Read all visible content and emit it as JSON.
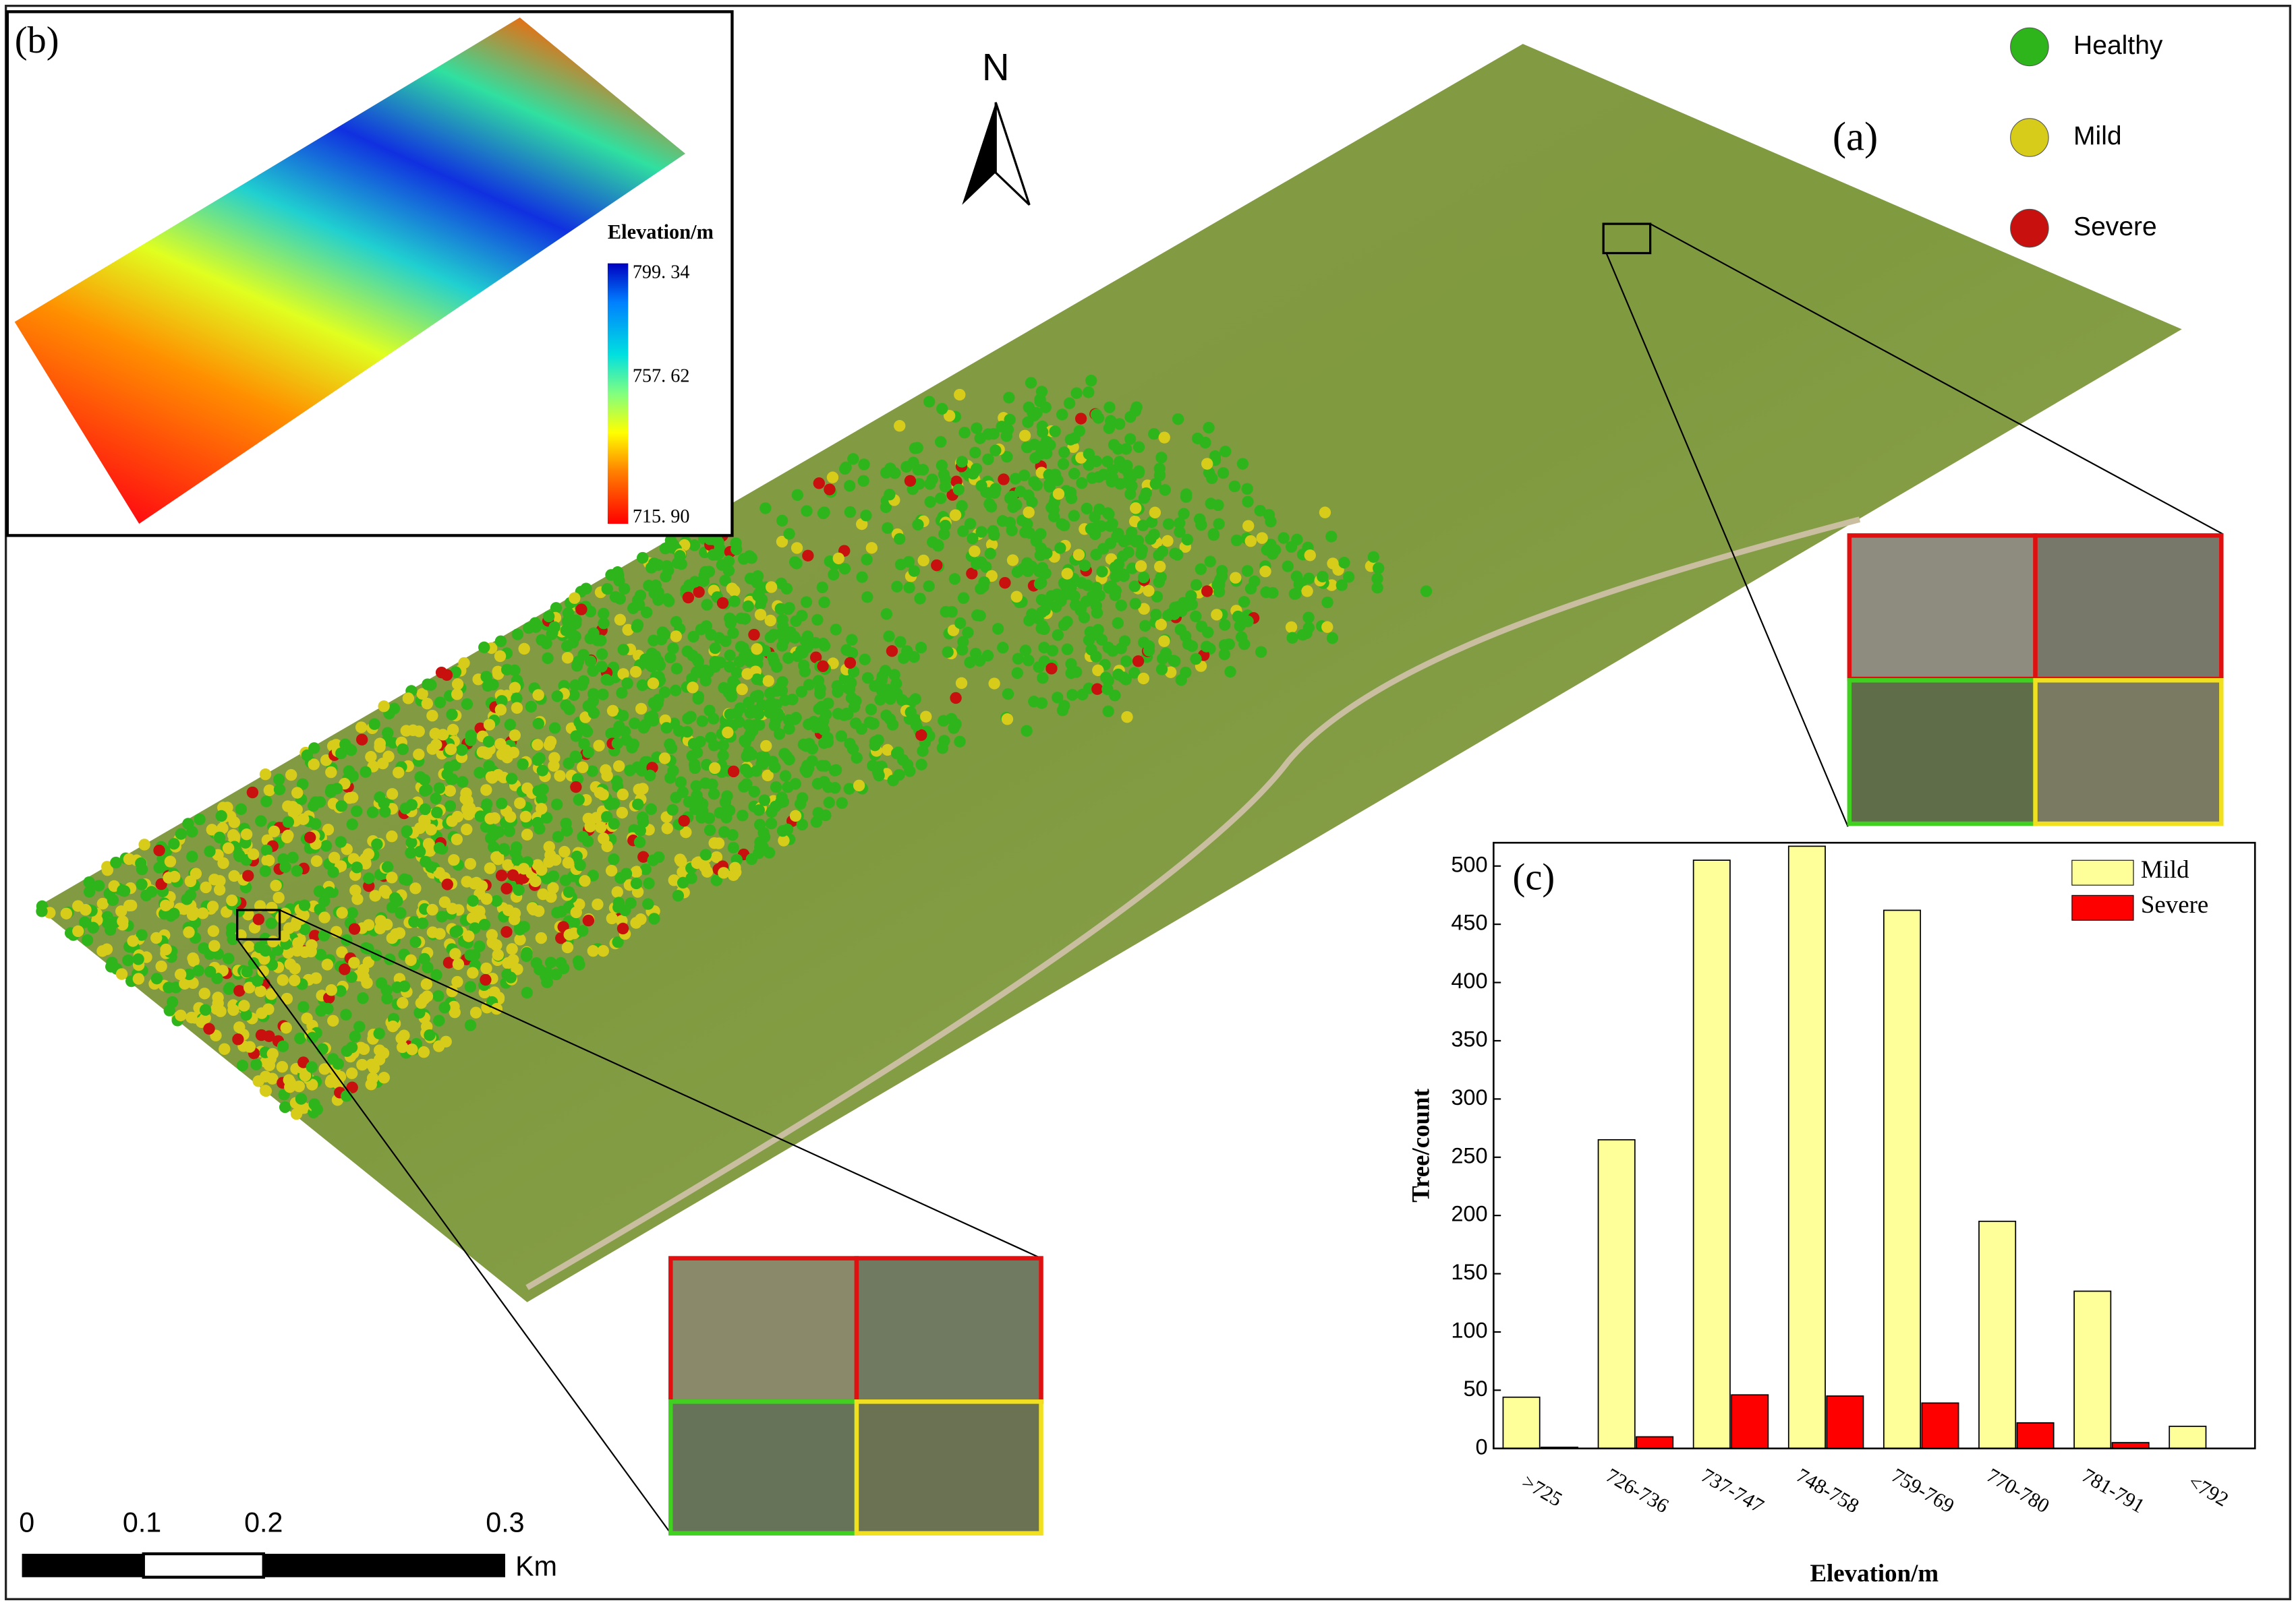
{
  "map": {
    "panel_label": "(a)",
    "north": "N",
    "legend": [
      {
        "name": "Healthy",
        "color": "#2fb51c"
      },
      {
        "name": "Mild",
        "color": "#d8cc1a"
      },
      {
        "name": "Severe",
        "color": "#c8100e"
      }
    ],
    "scale_bar": {
      "ticks": [
        "0",
        "0.1",
        "0.2",
        "0.3"
      ],
      "unit": "Km"
    }
  },
  "elevation_inset": {
    "panel_label": "(b)",
    "title": "Elevation/m",
    "ticks": [
      "799. 34",
      "757. 62",
      "715. 90"
    ]
  },
  "chart_data": {
    "type": "bar",
    "panel_label": "(c)",
    "x_label": "Elevation/m",
    "y_label": "Tree/count",
    "categories": [
      ">725",
      "726-736",
      "737-747",
      "748-758",
      "759-769",
      "770-780",
      "781-791",
      "<792"
    ],
    "series": [
      {
        "name": "Mild",
        "color": "#ffff99",
        "values": [
          44,
          265,
          505,
          517,
          462,
          195,
          135,
          19
        ]
      },
      {
        "name": "Severe",
        "color": "#ff0000",
        "values": [
          1,
          10,
          46,
          45,
          39,
          22,
          5,
          0
        ]
      }
    ],
    "ylim": [
      0,
      520
    ],
    "yticks": [
      0,
      50,
      100,
      150,
      200,
      250,
      300,
      350,
      400,
      450,
      500
    ]
  }
}
